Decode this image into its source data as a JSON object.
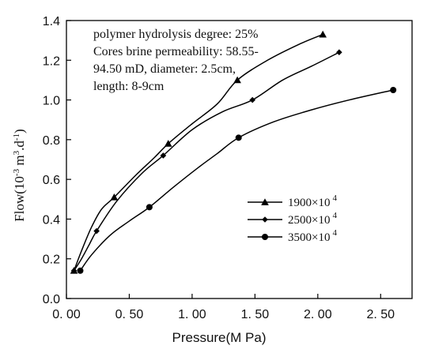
{
  "chart_data": {
    "type": "line",
    "title": "",
    "xlabel": "Pressure(M Pa)",
    "ylabel": {
      "prefix": "Flow(10",
      "exp1": "-3",
      "mid": " m",
      "exp2": "3",
      "mid2": ".d",
      "exp3": "-1",
      "suffix": ")"
    },
    "xlim": [
      0,
      2.75
    ],
    "ylim": [
      0,
      1.4
    ],
    "x_ticks": [
      0,
      0.5,
      1.0,
      1.5,
      2.0,
      2.5
    ],
    "x_tick_labels": [
      "0. 00",
      "0. 50",
      "1. 00",
      "1. 50",
      "2. 00",
      "2. 50"
    ],
    "y_ticks": [
      0,
      0.2,
      0.4,
      0.6,
      0.8,
      1.0,
      1.2,
      1.4
    ],
    "y_tick_labels": [
      "0.0",
      "0.2",
      "0.4",
      "0.6",
      "0.8",
      "1.0",
      "1.2",
      "1.4"
    ],
    "grid": false,
    "legend_position": "right",
    "annotation_lines": [
      "polymer hydrolysis degree: 25%",
      "Cores brine permeability: 58.55-",
      "94.50 mD, diameter: 2.5cm,",
      "length: 8-9cm"
    ],
    "series": [
      {
        "name": "1900×10",
        "name_exp": "4",
        "marker": "triangle",
        "x": [
          0.06,
          0.38,
          0.81,
          1.36,
          2.04
        ],
        "y": [
          0.14,
          0.51,
          0.78,
          1.1,
          1.33
        ],
        "curve": [
          [
            0.06,
            0.14
          ],
          [
            0.12,
            0.24
          ],
          [
            0.2,
            0.36
          ],
          [
            0.28,
            0.45
          ],
          [
            0.38,
            0.51
          ],
          [
            0.55,
            0.62
          ],
          [
            0.7,
            0.71
          ],
          [
            0.81,
            0.78
          ],
          [
            1.0,
            0.88
          ],
          [
            1.2,
            0.98
          ],
          [
            1.36,
            1.1
          ],
          [
            1.6,
            1.2
          ],
          [
            1.85,
            1.28
          ],
          [
            2.04,
            1.33
          ]
        ]
      },
      {
        "name": "2500×10",
        "name_exp": "4",
        "marker": "diamond",
        "x": [
          0.06,
          0.24,
          0.77,
          1.48,
          2.17
        ],
        "y": [
          0.14,
          0.34,
          0.72,
          1.0,
          1.24
        ],
        "curve": [
          [
            0.06,
            0.14
          ],
          [
            0.12,
            0.2
          ],
          [
            0.18,
            0.27
          ],
          [
            0.24,
            0.34
          ],
          [
            0.4,
            0.49
          ],
          [
            0.6,
            0.63
          ],
          [
            0.77,
            0.72
          ],
          [
            1.0,
            0.85
          ],
          [
            1.24,
            0.94
          ],
          [
            1.48,
            1.0
          ],
          [
            1.72,
            1.1
          ],
          [
            1.95,
            1.17
          ],
          [
            2.17,
            1.24
          ]
        ]
      },
      {
        "name": "3500×10",
        "name_exp": "4",
        "marker": "circle",
        "x": [
          0.11,
          0.66,
          1.37,
          2.6
        ],
        "y": [
          0.14,
          0.46,
          0.81,
          1.05
        ],
        "curve": [
          [
            0.11,
            0.14
          ],
          [
            0.2,
            0.22
          ],
          [
            0.35,
            0.32
          ],
          [
            0.5,
            0.39
          ],
          [
            0.66,
            0.46
          ],
          [
            0.85,
            0.56
          ],
          [
            1.05,
            0.66
          ],
          [
            1.2,
            0.73
          ],
          [
            1.37,
            0.81
          ],
          [
            1.65,
            0.89
          ],
          [
            1.95,
            0.95
          ],
          [
            2.25,
            1.0
          ],
          [
            2.6,
            1.05
          ]
        ]
      }
    ]
  }
}
